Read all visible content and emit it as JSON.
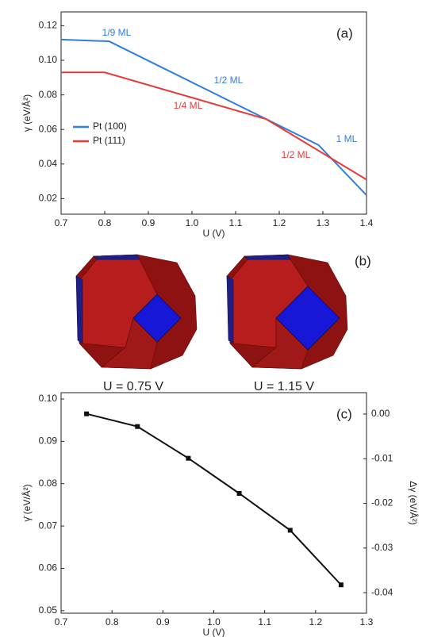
{
  "chart_data": [
    {
      "type": "line",
      "panel_label": "(a)",
      "x_label": "U (V)",
      "y_label": "γ (eV/Å²)",
      "xlim": [
        0.7,
        1.4
      ],
      "xticks": [
        0.7,
        0.8,
        0.9,
        {
          "value": 1.0,
          "label": "1.0"
        },
        1.1,
        1.2,
        1.3,
        1.4
      ],
      "ylim": [
        0.011,
        0.128
      ],
      "yticks": [
        0.02,
        0.04,
        0.06,
        0.08,
        {
          "value": 0.1,
          "label": "0.10"
        },
        0.12
      ],
      "legend": "left",
      "series": [
        {
          "name": "Pt (100)",
          "color": "#2f7ee0",
          "x": [
            0.7,
            0.81,
            1.29,
            1.4
          ],
          "values": [
            0.112,
            0.111,
            0.051,
            0.022
          ]
        },
        {
          "name": "Pt (111)",
          "color": "#e8393a",
          "x": [
            0.7,
            0.8,
            1.17,
            1.4
          ],
          "values": [
            0.093,
            0.093,
            0.066,
            0.031
          ]
        }
      ],
      "annotations": [
        {
          "text": "1/9 ML",
          "color": "#2f7ee0"
        },
        {
          "text": "1/2 ML",
          "color": "#2f7ee0"
        },
        {
          "text": "1/4 ML",
          "color": "#e8393a"
        },
        {
          "text": "1 ML",
          "color": "#2f7ee0"
        },
        {
          "text": "1/2 ML",
          "color": "#e8393a"
        }
      ]
    },
    {
      "type": "line",
      "panel_label": "(c)",
      "x_label": "U (V)",
      "y_label": "γ̄ (eV/Å²)",
      "y2_label": "Δγ (eV/Å²)",
      "xlim": [
        0.7,
        1.3
      ],
      "xticks": [
        0.7,
        0.8,
        0.9,
        {
          "value": 1.0,
          "label": "1.0"
        },
        1.1,
        1.2,
        1.3
      ],
      "ylim": [
        0.0494,
        0.1015
      ],
      "yticks": [
        0.05,
        0.06,
        0.07,
        0.08,
        0.09,
        {
          "value": 0.1,
          "label": "0.10"
        }
      ],
      "y2lim": [
        -0.0446,
        0.0048
      ],
      "y2ticks": [
        {
          "value": 0,
          "label": "0.00"
        },
        -0.01,
        -0.02,
        -0.03,
        -0.04
      ],
      "series": [
        {
          "color": "#111111",
          "marker": "square",
          "x": [
            0.75,
            0.85,
            0.95,
            1.05,
            1.15,
            1.25
          ],
          "values": [
            0.0965,
            0.0935,
            0.086,
            0.0777,
            0.069,
            0.0561
          ]
        }
      ]
    }
  ],
  "panel_b": {
    "label": "(b)",
    "captions": [
      "U = 0.75 V",
      "U = 1.15 V"
    ]
  }
}
